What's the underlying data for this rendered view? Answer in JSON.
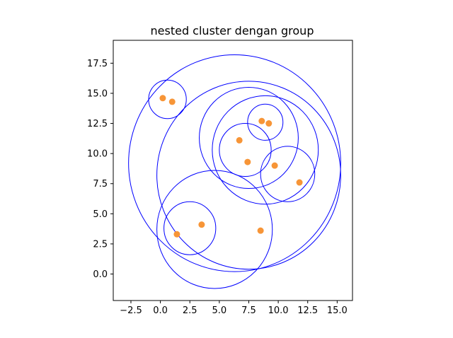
{
  "chart_data": {
    "type": "scatter",
    "title": "nested cluster dengan group",
    "xlabel": "",
    "ylabel": "",
    "xlim": [
      -4.0,
      16.3
    ],
    "ylim": [
      -2.2,
      19.4
    ],
    "xticks": [
      -2.5,
      0.0,
      2.5,
      5.0,
      7.5,
      10.0,
      12.5,
      15.0
    ],
    "yticks": [
      0.0,
      2.5,
      5.0,
      7.5,
      10.0,
      12.5,
      15.0,
      17.5
    ],
    "xtick_labels": [
      "−2.5",
      "0.0",
      "2.5",
      "5.0",
      "7.5",
      "10.0",
      "12.5",
      "15.0"
    ],
    "ytick_labels": [
      "0.0",
      "2.5",
      "5.0",
      "7.5",
      "10.0",
      "12.5",
      "15.0",
      "17.5"
    ],
    "grid": false,
    "colors": {
      "points": "#f79537",
      "circles": "#0000ff"
    },
    "points": [
      {
        "x": 0.2,
        "y": 14.6
      },
      {
        "x": 1.0,
        "y": 14.3
      },
      {
        "x": 8.6,
        "y": 12.7
      },
      {
        "x": 9.2,
        "y": 12.5
      },
      {
        "x": 6.7,
        "y": 11.1
      },
      {
        "x": 7.4,
        "y": 9.3
      },
      {
        "x": 9.7,
        "y": 9.0
      },
      {
        "x": 11.8,
        "y": 7.6
      },
      {
        "x": 3.5,
        "y": 4.1
      },
      {
        "x": 1.4,
        "y": 3.3
      },
      {
        "x": 8.5,
        "y": 3.6
      }
    ],
    "circles": [
      {
        "cx": 6.3,
        "cy": 9.2,
        "r": 9.0
      },
      {
        "cx": 7.5,
        "cy": 8.2,
        "r": 7.8
      },
      {
        "cx": 0.6,
        "cy": 14.5,
        "r": 1.6
      },
      {
        "cx": 8.9,
        "cy": 10.3,
        "r": 4.5
      },
      {
        "cx": 7.5,
        "cy": 11.3,
        "r": 4.2
      },
      {
        "cx": 8.9,
        "cy": 12.6,
        "r": 1.5
      },
      {
        "cx": 7.2,
        "cy": 10.3,
        "r": 2.2
      },
      {
        "cx": 10.8,
        "cy": 8.3,
        "r": 2.3
      },
      {
        "cx": 4.6,
        "cy": 3.7,
        "r": 4.9
      },
      {
        "cx": 2.5,
        "cy": 3.8,
        "r": 2.2
      }
    ]
  }
}
